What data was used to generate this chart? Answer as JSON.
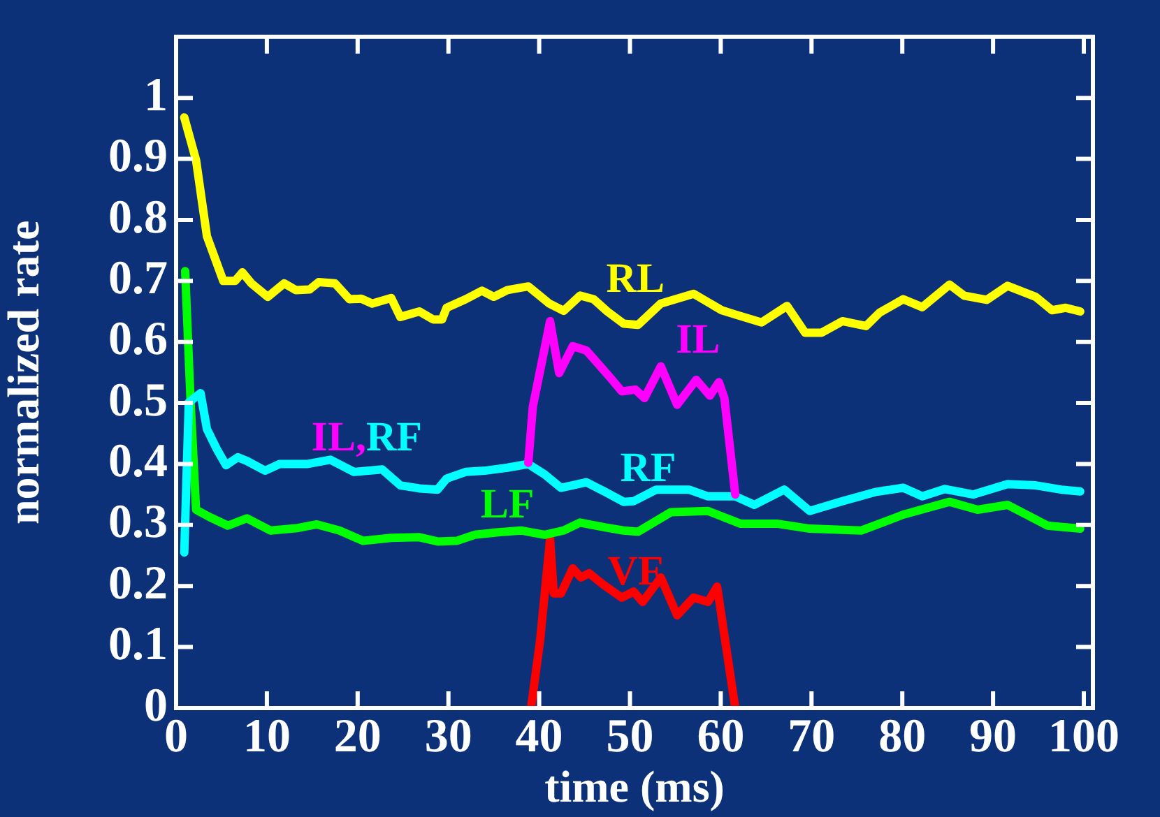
{
  "chart_data": {
    "type": "line",
    "xlabel": "time (ms)",
    "ylabel": "normalized rate",
    "xlim": [
      0,
      101
    ],
    "ylim": [
      0,
      1.1
    ],
    "xticks": [
      0,
      10,
      20,
      30,
      40,
      50,
      60,
      70,
      80,
      90,
      100
    ],
    "yticks": [
      0,
      0.1,
      0.2,
      0.3,
      0.4,
      0.5,
      0.6,
      0.7,
      0.8,
      0.9,
      1
    ],
    "grid": false,
    "legend": false,
    "marker": "none",
    "line_style": "solid",
    "series": [
      {
        "name": "RL",
        "color": "#ffff00",
        "x": [
          0.9,
          2.2,
          2.9,
          3.4,
          5.2,
          6.5,
          7.3,
          8.3,
          10.1,
          11.9,
          13.2,
          14.7,
          15.7,
          17.5,
          19.1,
          20.4,
          21.6,
          23.7,
          24.7,
          26.8,
          28.3,
          29.3,
          29.8,
          31.9,
          33.7,
          35.0,
          36.5,
          38.8,
          41.1,
          42.7,
          44.5,
          46.0,
          47.5,
          49.3,
          50.9,
          53.4,
          57.0,
          60.1,
          61.6,
          64.5,
          67.3,
          69.3,
          71.1,
          73.4,
          76.0,
          77.5,
          80.1,
          82.2,
          85.2,
          86.8,
          89.3,
          91.6,
          94.7,
          96.5,
          98.0,
          99.6
        ],
        "values": [
          0.968,
          0.898,
          0.825,
          0.773,
          0.7,
          0.7,
          0.714,
          0.696,
          0.674,
          0.696,
          0.685,
          0.686,
          0.698,
          0.696,
          0.67,
          0.671,
          0.663,
          0.672,
          0.641,
          0.65,
          0.637,
          0.637,
          0.656,
          0.67,
          0.684,
          0.674,
          0.685,
          0.691,
          0.663,
          0.651,
          0.676,
          0.67,
          0.65,
          0.63,
          0.628,
          0.663,
          0.679,
          0.652,
          0.645,
          0.632,
          0.659,
          0.615,
          0.615,
          0.634,
          0.626,
          0.648,
          0.67,
          0.657,
          0.694,
          0.676,
          0.669,
          0.692,
          0.674,
          0.652,
          0.656,
          0.65
        ]
      },
      {
        "name": "IL",
        "color": "#ff00ff",
        "x": [
          38.8,
          39.3,
          40.4,
          41.2,
          42.2,
          43.7,
          45.2,
          47.8,
          49.1,
          50.6,
          51.6,
          53.4,
          55.2,
          57.3,
          58.8,
          59.8,
          60.4,
          61.6
        ],
        "values": [
          0.402,
          0.494,
          0.575,
          0.634,
          0.549,
          0.593,
          0.586,
          0.542,
          0.519,
          0.522,
          0.508,
          0.56,
          0.497,
          0.538,
          0.512,
          0.534,
          0.508,
          0.35
        ]
      },
      {
        "name": "RF",
        "color": "#00ffff",
        "x": [
          0.9,
          1.4,
          2.7,
          3.4,
          4.5,
          5.5,
          6.8,
          7.8,
          9.8,
          11.4,
          14.5,
          17.0,
          19.6,
          22.7,
          24.7,
          26.8,
          28.8,
          29.8,
          31.9,
          34.0,
          36.5,
          38.8,
          40.6,
          42.4,
          45.2,
          47.3,
          49.3,
          50.4,
          52.9,
          56.5,
          58.6,
          61.6,
          63.7,
          67.0,
          69.8,
          73.4,
          77.0,
          80.1,
          82.2,
          84.7,
          87.8,
          91.6,
          94.7,
          97.5,
          99.6
        ],
        "values": [
          0.255,
          0.501,
          0.516,
          0.457,
          0.424,
          0.398,
          0.411,
          0.405,
          0.389,
          0.4,
          0.4,
          0.407,
          0.387,
          0.391,
          0.365,
          0.36,
          0.358,
          0.376,
          0.387,
          0.389,
          0.394,
          0.4,
          0.383,
          0.361,
          0.37,
          0.354,
          0.338,
          0.339,
          0.358,
          0.358,
          0.347,
          0.347,
          0.333,
          0.358,
          0.323,
          0.339,
          0.354,
          0.361,
          0.347,
          0.359,
          0.35,
          0.367,
          0.365,
          0.358,
          0.355
        ]
      },
      {
        "name": "LF",
        "color": "#00ff00",
        "x": [
          1.0,
          1.6,
          2.2,
          3.7,
          5.7,
          7.8,
          10.4,
          13.4,
          15.5,
          18.0,
          20.6,
          23.7,
          26.8,
          28.8,
          30.9,
          32.9,
          35.5,
          38.0,
          40.6,
          42.7,
          44.5,
          47.3,
          49.3,
          50.9,
          54.5,
          58.6,
          62.2,
          66.3,
          69.8,
          75.5,
          80.1,
          85.2,
          88.3,
          91.6,
          96.0,
          99.6
        ],
        "values": [
          0.716,
          0.501,
          0.325,
          0.313,
          0.299,
          0.311,
          0.291,
          0.295,
          0.301,
          0.291,
          0.274,
          0.279,
          0.28,
          0.273,
          0.274,
          0.284,
          0.288,
          0.291,
          0.284,
          0.291,
          0.304,
          0.296,
          0.291,
          0.289,
          0.321,
          0.323,
          0.302,
          0.302,
          0.294,
          0.291,
          0.317,
          0.338,
          0.325,
          0.333,
          0.299,
          0.294
        ]
      },
      {
        "name": "VF",
        "color": "#ff0000",
        "x": [
          39.1,
          40.1,
          41.2,
          41.6,
          42.4,
          43.7,
          44.6,
          45.5,
          47.0,
          49.1,
          50.4,
          51.4,
          53.4,
          55.2,
          57.0,
          58.6,
          59.6,
          61.6
        ],
        "values": [
          0,
          0.111,
          0.277,
          0.188,
          0.188,
          0.229,
          0.214,
          0.221,
          0.203,
          0.181,
          0.191,
          0.174,
          0.214,
          0.152,
          0.181,
          0.174,
          0.199,
          0
        ]
      }
    ],
    "annotations": [
      "IL,RF"
    ]
  }
}
